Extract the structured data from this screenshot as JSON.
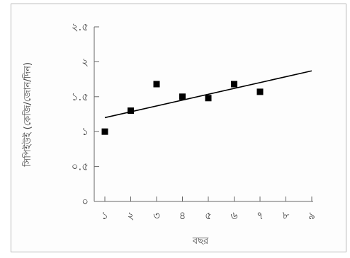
{
  "chart_data": {
    "type": "scatter",
    "xlabel": "বছর",
    "ylabel": "সিপিইউই (কেজি/জোন/দিন)",
    "x_ticks": [
      1,
      2,
      3,
      4,
      5,
      6,
      7,
      8,
      9
    ],
    "x_tick_labels": [
      "১",
      "২",
      "৩",
      "৪",
      "৫",
      "৬",
      "৭",
      "৮",
      "৯"
    ],
    "y_ticks": [
      0,
      0.5,
      1,
      1.5,
      2,
      2.5
    ],
    "y_tick_labels": [
      "০",
      "০.৫",
      "১",
      "১.৫",
      "২",
      "২.৫"
    ],
    "xlim": [
      0.95,
      9
    ],
    "ylim": [
      0,
      2.5
    ],
    "grid": false,
    "series": [
      {
        "type": "scatter",
        "marker": "square",
        "color": "#000000",
        "x": [
          1,
          2,
          3,
          4,
          5,
          6,
          7
        ],
        "y": [
          1.0,
          1.3,
          1.68,
          1.5,
          1.48,
          1.68,
          1.57
        ]
      },
      {
        "type": "line",
        "color": "#000000",
        "x": [
          1,
          9
        ],
        "y": [
          1.2,
          1.87
        ]
      }
    ]
  }
}
